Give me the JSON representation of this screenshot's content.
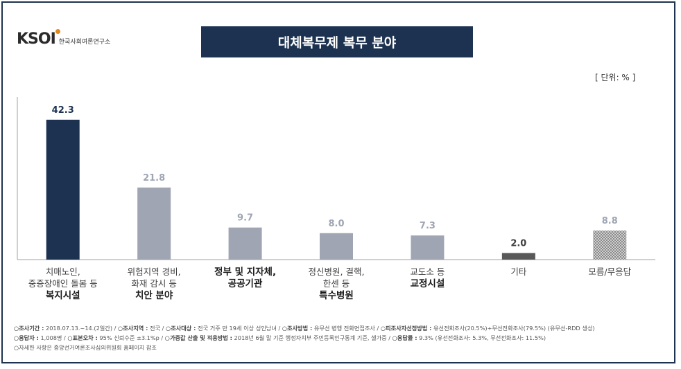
{
  "logo": {
    "mark": "KSOI",
    "subtitle": "한국사회여론연구소"
  },
  "title": "대체복무제 복무 분야",
  "unit_label": "[ 단위: % ]",
  "chart_data": {
    "type": "bar",
    "title": "대체복무제 복무 분야",
    "unit": "%",
    "categories": [
      [
        "치매노인,",
        "중증장애인 돌봄 등",
        "복지시설"
      ],
      [
        "위험지역 경비,",
        "화재 감시 등",
        "치안 분야"
      ],
      [
        "정부 및 지자체,",
        "공공기관"
      ],
      [
        "정신병원, 결핵,",
        "한센 등",
        "특수병원"
      ],
      [
        "교도소 등",
        "교정시설"
      ],
      [
        "기타"
      ],
      [
        "모름/무응답"
      ]
    ],
    "bold_lines": [
      [
        2
      ],
      [
        2
      ],
      [
        0,
        1
      ],
      [
        2
      ],
      [
        1
      ],
      [],
      []
    ],
    "values": [
      42.3,
      21.8,
      9.7,
      8.0,
      7.3,
      2.0,
      8.8
    ],
    "value_labels": [
      "42.3",
      "21.8",
      "9.7",
      "8.0",
      "7.3",
      "2.0",
      "8.8"
    ],
    "bar_colors": [
      "#1c3250",
      "#9fa5b3",
      "#9fa5b3",
      "#9fa5b3",
      "#9fa5b3",
      "#595959",
      "pattern"
    ],
    "label_colors": [
      "#1c3250",
      "#9fa5b3",
      "#9fa5b3",
      "#9fa5b3",
      "#9fa5b3",
      "#404040",
      "#9fa5b3"
    ],
    "ylim": [
      0,
      45
    ],
    "grid": false,
    "legend": "none"
  },
  "footnotes": {
    "line1": [
      {
        "k": "○조사기간 :",
        "v": " 2018.07.13.~14.(2일간) / "
      },
      {
        "k": "○조사지역 :",
        "v": " 전국 / "
      },
      {
        "k": "○조사대상 :",
        "v": " 전국 거주 만 19세 이상 성인남녀 / "
      },
      {
        "k": "○조사방법 :",
        "v": " 유무선 병행 전화면접조사 / "
      },
      {
        "k": "○피조사자선정방법 :",
        "v": " 유선전화조사(20.5%)+무선전화조사(79.5%) (유무선-RDD 생성)"
      }
    ],
    "line2": [
      {
        "k": "○응답자 :",
        "v": " 1,008명 / "
      },
      {
        "k": "○표본오차 :",
        "v": " 95% 신뢰수준 ±3.1%p / "
      },
      {
        "k": "○가중값 산출 및 적용방법 :",
        "v": " 2018년 6월 말 기준 행정자치부 주민등록인구통계 기준, 셀가중 / "
      },
      {
        "k": "○응답률 :",
        "v": " 9.3% (유선전화조사: 5.3%, 무선전화조사: 11.5%)"
      }
    ],
    "line3": [
      {
        "k": "",
        "v": "○자세한 사항은 중앙선거여론조사심의위원회 홈페이지 참조"
      }
    ]
  }
}
